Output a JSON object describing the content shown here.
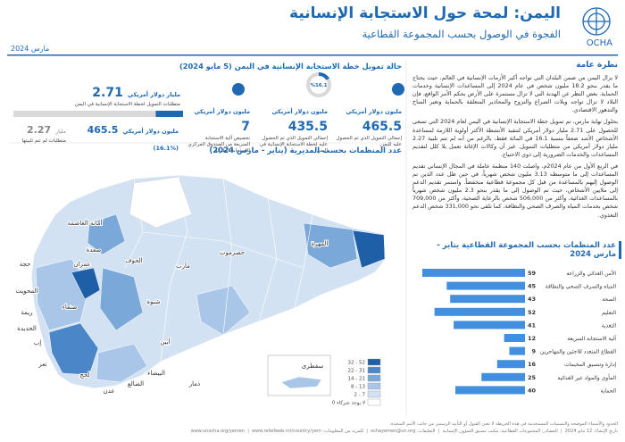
{
  "header": {
    "title": "اليمن: لمحة حول الاستجابة الإنسانية",
    "subtitle": "الفجوة في الوصول بحسب المجموعة القطاعية",
    "date": "مارس 2024",
    "org": "OCHA"
  },
  "overview": {
    "heading": "نظرة عامة",
    "paragraphs": [
      "لا يزال اليمن من ضمن البلدان التي تواجه أكبر الأزمات الإنسانية في العالم، حيث يحتاج ما يقدر بنحو 18.2 مليون شخص في عام 2024 إلى المساعدات الإنسانية وخدمات الحماية. بغض النظر عن الهدنة التي لا تزال مستمرة على الأرض بحكم الأمر الواقع، فإن البلاد لا تزال تواجه ويلات الصراع والنزوح والمحاذير المتعلقة بالحماية وتغير المناخ والتدهور الاقتصادي.",
      "بحلول نهاية مارس، تم تمويل خطة الاستجابة الإنسانية في اليمن لعام 2024 التي تسعى للحصول على 2.71 مليار دولار أمريكي لتنفيذ الأنشطة الأكثر أولوية اللازمة لمساعدة الأشخاص الأشد ضعفاً بنسبة 16.1 في المائة فقط، بالرغم من أنه لم تتم تلبية 2.27 مليار دولار أمريكي من متطلبات التمويل. غير أن وكالات الإغاثة تعمل بلا كلل لتقديم المساعدات والخدمات الضرورية إلى ذوي الاحتياج.",
      "في الربع الأول من عام 2024م، واصلت 140 منظمة عاملة في المجال الإنساني تقديم المساعدات إلى ما متوسطه 3.13 مليون شخص شهرياً، في حين ظل عدد الذين تم الوصول إليهم بالمساعدة من قبل كل مجموعة قطاعية منخفضاً. واستمر تقديم الدعم إلى ملايين الأشخاص، حيث تم الوصول إلى ما يقدر بنحو 2.3 مليون شخص شهرياً بالمساعدات الغذائية، وأكثر من 506,000 شخص بالرعاية الصحية، وأكثر من 709,000 شخص بخدمات المياه والصرف الصحي والنظافة، كما تلقى نحو 331,000 شخص الدعم التغذوي."
    ]
  },
  "funding": {
    "title": "حالة تمويل خطة الاستجابة الإنسانية في اليمن (5 مايو 2024)",
    "total_received": {
      "value": 465.5,
      "unit": "مليون دولار أمريكي",
      "caption": "إجمالي التمويل الذي تم الحصول عليه لليمن"
    },
    "hrp_received": {
      "value": 435.5,
      "unit": "مليون دولار أمريكي",
      "caption": "إجمالي التمويل الذي تم الحصول عليه لخطة الاستجابة الإنسانية في اليمن"
    },
    "donut_pct": {
      "value": 16.1,
      "label": "%16.1"
    },
    "rrm": {
      "value": 7,
      "unit": "مليون دولار أمريكي",
      "caption": "تخصيص آلية الاستجابة السريعة من الصندوق المركزي للاستجابة الطارئة"
    },
    "requirements": {
      "value": 2.71,
      "unit": "مليار دولار أمريكي",
      "caption": "متطلبات التمويل لخطة الاستجابة الإنسانية في اليمن"
    },
    "funded": {
      "value": 465.5,
      "unit": "مليون دولار أمريكي",
      "pct": {
        "value": 16.1,
        "label": "(%16.1)"
      }
    },
    "unmet": {
      "value": 2.27,
      "unit": "مليار",
      "caption": "متطلبات لم تتم تلبيتها"
    }
  },
  "map": {
    "title": "عدد المنظمات بحسب المديرية (يناير - مارس 2024)",
    "legend": [
      {
        "label": "32 - 52",
        "color": "#1f5fa8"
      },
      {
        "label": "22 - 31",
        "color": "#4a86c8"
      },
      {
        "label": "14 - 21",
        "color": "#7aa8d8"
      },
      {
        "label": "8 - 13",
        "color": "#a9c6e8"
      },
      {
        "label": "2 - 7",
        "color": "#d3e2f3"
      },
      {
        "label": "0 لا يوجد شركاء",
        "color": "#ffffff"
      }
    ],
    "governorates": [
      "أمانة العاصمة",
      "صعدة",
      "الجوف",
      "حجة",
      "عمران",
      "المحويت",
      "صنعاء",
      "ريمة",
      "الحديدة",
      "إب",
      "تعز",
      "لحج",
      "عدن",
      "الضالع",
      "البيضاء",
      "أبين",
      "شبوة",
      "مأرب",
      "ذمار",
      "حضرموت",
      "المهرة",
      "سقطرى"
    ]
  },
  "sector_chart": {
    "title": "عدد المنظمات بحسب المجموعة القطاعية يناير - مارس 2024",
    "categories": [
      "الأمن الغذائي والزراعة",
      "المياه والصرف الصحي والنظافة",
      "الصحة",
      "التعليم",
      "التغذية",
      "آلية الاستجابة السريعة",
      "القطاع المتعدد للاجئين والمهاجرين",
      "إدارة وتنسيق المخيمات",
      "المأوى والمواد غير الغذائية",
      "الحماية"
    ],
    "values": [
      59,
      45,
      43,
      52,
      41,
      12,
      9,
      16,
      25,
      40
    ],
    "color": "#418fde"
  },
  "footer": {
    "disclaimer": "الحدود والأسماء الموضحة والتسميات المستخدمة في هذه الخريطة لا تعني القبول أو التأييد الرسمي من جانب الأمم المتحدة.",
    "created": "تاريخ الإنشاء: 12 مايو 2024",
    "sources": "المصادر: المجموعات القطاعية، مكتب تنسيق الشؤون الإنسانية",
    "feedback": "التعليقات: ochayemen@un.org",
    "more_info": "للمزيد من المعلومات: www.unocha.org/yemen",
    "reliefweb": "www.reliefweb.int/country/yem"
  }
}
